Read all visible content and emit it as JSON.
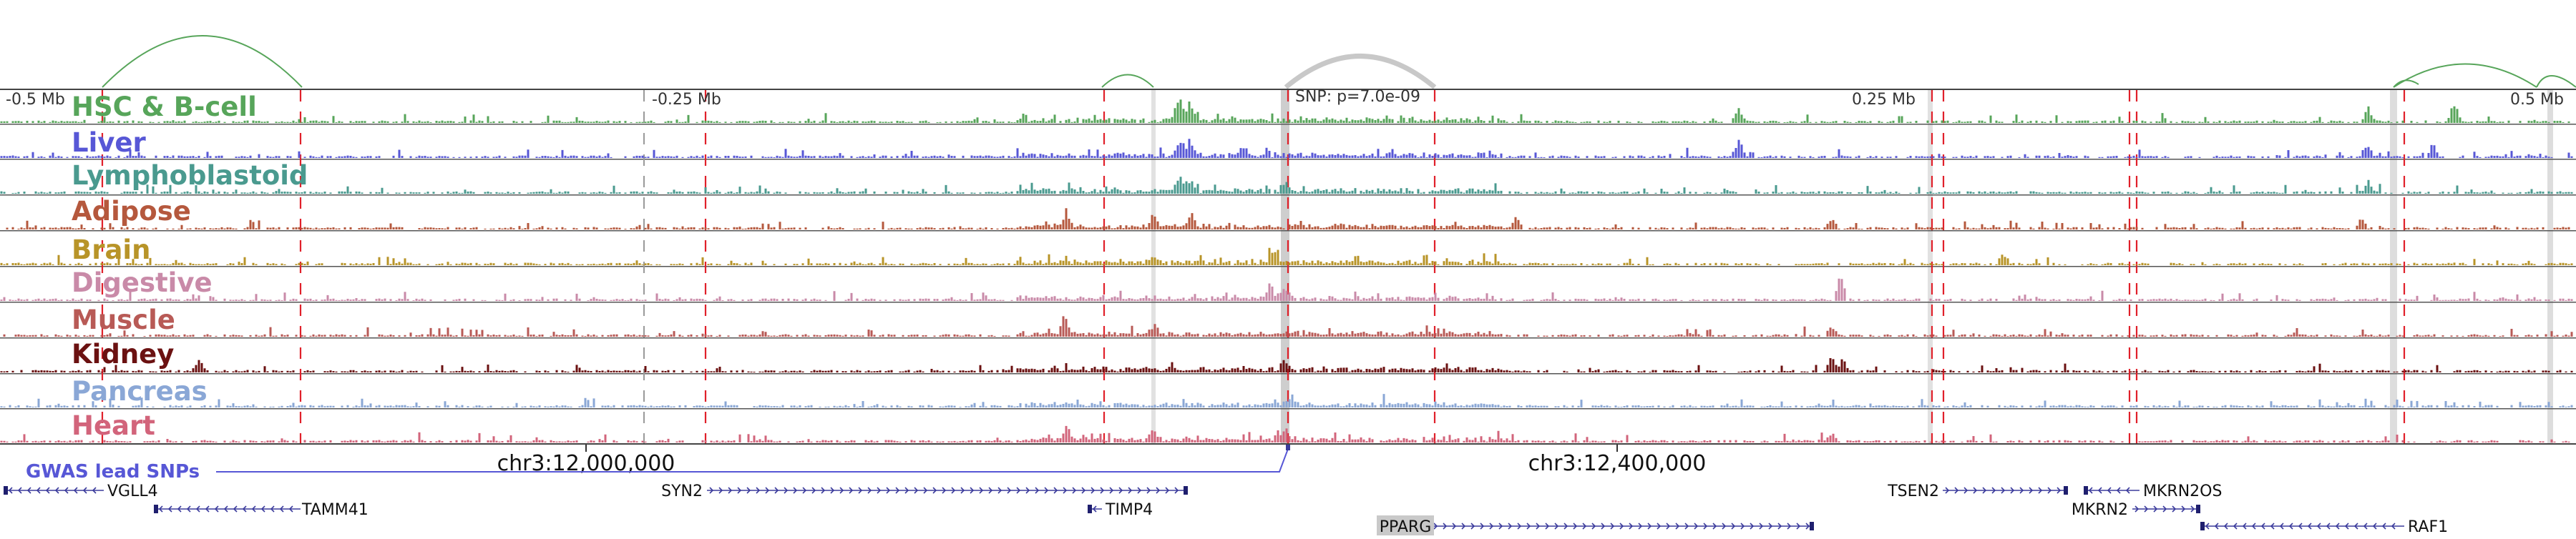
{
  "browser": {
    "axis_labels": [
      "-0.5 Mb",
      "-0.25 Mb",
      "0.25 Mb",
      "0.5 Mb"
    ],
    "snp_label": "SNP: p=7.0e-09",
    "coordinates": [
      "chr3:12,000,000",
      "chr3:12,400,000"
    ],
    "gwas_label": "GWAS lead SNPs"
  },
  "tracks": [
    {
      "name": "HSC & B-cell",
      "color": "#57a55a"
    },
    {
      "name": "Liver",
      "color": "#5757d6"
    },
    {
      "name": "Lymphoblastoid",
      "color": "#4a9a8f"
    },
    {
      "name": "Adipose",
      "color": "#b5583d"
    },
    {
      "name": "Brain",
      "color": "#b89428"
    },
    {
      "name": "Digestive",
      "color": "#c98aa8"
    },
    {
      "name": "Muscle",
      "color": "#b85a56"
    },
    {
      "name": "Kidney",
      "color": "#6b1111"
    },
    {
      "name": "Pancreas",
      "color": "#8aa7d6"
    },
    {
      "name": "Heart",
      "color": "#d2647b"
    }
  ],
  "genes": [
    {
      "name": "VGLL4",
      "strand": "-"
    },
    {
      "name": "TAMM41",
      "strand": "-"
    },
    {
      "name": "SYN2",
      "strand": "+"
    },
    {
      "name": "TIMP4",
      "strand": "-"
    },
    {
      "name": "PPARG",
      "strand": "+",
      "highlighted": true
    },
    {
      "name": "TSEN2",
      "strand": "+"
    },
    {
      "name": "MKRN2OS",
      "strand": "-"
    },
    {
      "name": "MKRN2",
      "strand": "+"
    },
    {
      "name": "RAF1",
      "strand": "-"
    }
  ],
  "colors": {
    "enhancer_line": "#e0202a",
    "snp_highlight": "#b9b9b9",
    "gwas_line": "#5757d6",
    "gene": "#3b3b9c",
    "loop_arc": "#57a55a",
    "grid": "#9a9a9a"
  }
}
